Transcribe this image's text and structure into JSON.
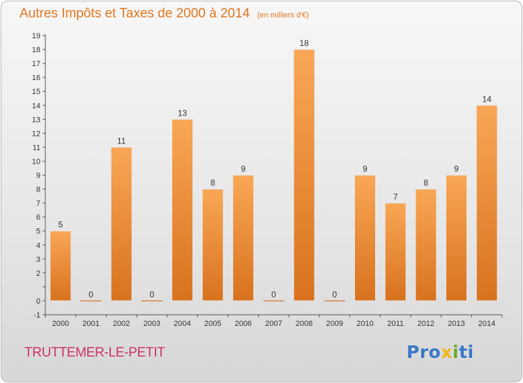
{
  "header": {
    "title": "Autres Impôts et Taxes de 2000 à 2014",
    "unit": "(en milliers d'€)"
  },
  "footer": {
    "commune": "TRUTTEMER-LE-PETIT"
  },
  "logo": {
    "letters": [
      {
        "char": "P",
        "color": "#3a78c8"
      },
      {
        "char": "r",
        "color": "#3a78c8"
      },
      {
        "char": "o",
        "color": "#3a78c8"
      },
      {
        "char": "x",
        "color": "#f0b818"
      },
      {
        "char": "i",
        "color": "#6aa82a"
      },
      {
        "char": "t",
        "color": "#3a78c8"
      },
      {
        "char": "i",
        "color": "#3a78c8"
      }
    ]
  },
  "colors": {
    "bar_light": "#f9a756",
    "bar_dark": "#d8721e",
    "title": "#e2761d",
    "commune": "#cc3366"
  },
  "chart_data": {
    "type": "bar",
    "title": "Autres Impôts et Taxes de 2000 à 2014",
    "subtitle": "(en milliers d'€)",
    "xlabel": "",
    "ylabel": "",
    "categories": [
      "2000",
      "2001",
      "2002",
      "2003",
      "2004",
      "2005",
      "2006",
      "2007",
      "2008",
      "2009",
      "2010",
      "2011",
      "2012",
      "2013",
      "2014"
    ],
    "values": [
      5,
      0,
      11,
      0,
      13,
      8,
      9,
      0,
      18,
      0,
      9,
      7,
      8,
      9,
      14
    ],
    "ylim": [
      -1,
      19
    ],
    "yticks": [
      -1,
      0,
      1,
      2,
      3,
      4,
      5,
      6,
      7,
      8,
      9,
      10,
      11,
      12,
      13,
      14,
      15,
      16,
      17,
      18,
      19
    ],
    "ytick_labels": [
      "-1",
      "0",
      "",
      "2",
      "3",
      "4",
      "5",
      "6",
      "7",
      "8",
      "9",
      "10",
      "11",
      "12",
      "13",
      "14",
      "15",
      "16",
      "17",
      "18",
      "19"
    ],
    "grid": false,
    "legend": "none"
  }
}
